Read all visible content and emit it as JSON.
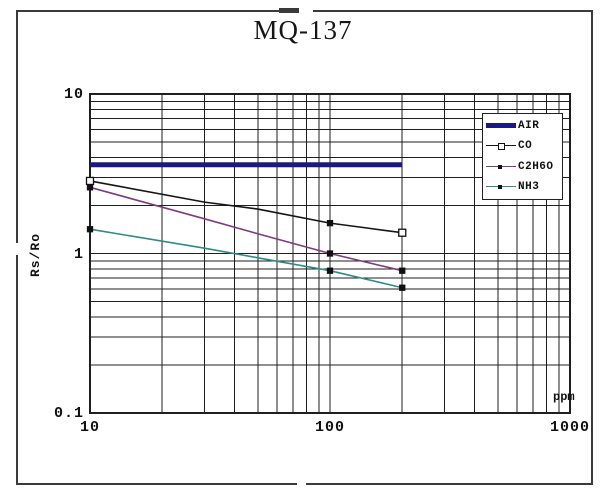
{
  "title": "MQ-137",
  "chart_data": {
    "type": "line",
    "title": "MQ-137",
    "ylabel": "Rs/Ro",
    "x_unit": "ppm",
    "x_scale": "log",
    "y_scale": "log",
    "xlim": [
      10,
      1000
    ],
    "ylim": [
      0.1,
      10
    ],
    "grid": true,
    "legend_position": "top-right",
    "x_ticks": [
      {
        "value": 10,
        "label": "10"
      },
      {
        "value": 100,
        "label": "100"
      },
      {
        "value": 1000,
        "label": "1000"
      }
    ],
    "y_ticks": [
      {
        "value": 10,
        "label": "10"
      },
      {
        "value": 1,
        "label": "1"
      },
      {
        "value": 0.1,
        "label": "0.1"
      }
    ],
    "grid_color": "#1f1f1f",
    "marker_color": "#111111",
    "series": [
      {
        "name": "AIR",
        "color": "#1a1a7e",
        "line_width": 5,
        "points": [
          [
            10,
            3.6
          ],
          [
            200,
            3.6
          ]
        ],
        "markers": []
      },
      {
        "name": "CO",
        "color": "#151515",
        "line_width": 1.6,
        "points": [
          [
            10,
            2.85
          ],
          [
            30,
            2.1
          ],
          [
            50,
            1.9
          ],
          [
            100,
            1.55
          ],
          [
            140,
            1.45
          ],
          [
            200,
            1.35
          ]
        ],
        "markers": [
          {
            "x": 10,
            "style": "open"
          },
          {
            "x": 100,
            "style": "filled"
          },
          {
            "x": 200,
            "style": "open"
          }
        ]
      },
      {
        "name": "C2H6O",
        "color": "#7d3c7d",
        "line_width": 1.6,
        "points": [
          [
            10,
            2.6
          ],
          [
            30,
            1.65
          ],
          [
            50,
            1.33
          ],
          [
            100,
            1.0
          ],
          [
            200,
            0.78
          ]
        ],
        "markers": [
          {
            "x": 10,
            "style": "filled"
          },
          {
            "x": 100,
            "style": "filled"
          },
          {
            "x": 200,
            "style": "filled"
          }
        ]
      },
      {
        "name": "NH3",
        "color": "#2e8b8b",
        "line_width": 1.6,
        "points": [
          [
            10,
            1.42
          ],
          [
            30,
            1.08
          ],
          [
            50,
            0.94
          ],
          [
            100,
            0.78
          ],
          [
            200,
            0.61
          ]
        ],
        "markers": [
          {
            "x": 10,
            "style": "filled"
          },
          {
            "x": 100,
            "style": "filled"
          },
          {
            "x": 200,
            "style": "filled"
          }
        ]
      }
    ]
  }
}
